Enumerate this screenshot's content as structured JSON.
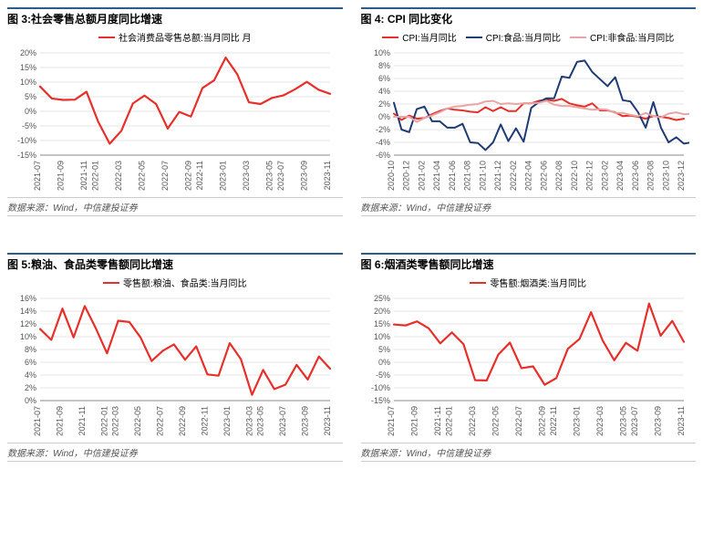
{
  "charts": [
    {
      "id": "c3",
      "title": "图 3:社会零售总额月度同比增速",
      "source": "数据来源：Wind，中信建投证券",
      "legend": [
        {
          "label": "社会消费品零售总额:当月同比 月",
          "color": "#e6302b"
        }
      ],
      "ylim": [
        -15,
        20
      ],
      "ytick_step": 5,
      "y_suffix": "%",
      "x_labels": [
        "2021-07",
        "2021-09",
        "2021-11",
        "2022-01",
        "2022-03",
        "2022-05",
        "2022-07",
        "2022-09",
        "2022-11",
        "2023-01",
        "2023-03",
        "2023-05",
        "2023-07",
        "2023-09",
        "2023-11"
      ],
      "series": [
        {
          "color": "#e6302b",
          "width": 2.2,
          "data": [
            8.5,
            4.4,
            3.9,
            4.0,
            6.7,
            -3.5,
            -11.1,
            -6.7,
            2.7,
            5.4,
            2.5,
            -5.9,
            -0.2,
            -1.8,
            8.0,
            10.6,
            18.4,
            12.7,
            3.1,
            2.5,
            4.6,
            5.5,
            7.6,
            10.1,
            7.4,
            6.0
          ]
        }
      ],
      "line_width": 2.2,
      "grid_color": "#e6e6e6",
      "bg": "#ffffff",
      "title_fontsize": 12,
      "label_fontsize": 9
    },
    {
      "id": "c4",
      "title": "图 4: CPI 同比变化",
      "source": "数据来源：Wind，中信建投证券",
      "legend": [
        {
          "label": "CPI:当月同比",
          "color": "#e6302b"
        },
        {
          "label": "CPI:食品:当月同比",
          "color": "#1f3b73"
        },
        {
          "label": "CPI:非食品:当月同比",
          "color": "#e8a5a5"
        }
      ],
      "ylim": [
        -6,
        10
      ],
      "ytick_step": 2,
      "y_suffix": "%",
      "x_labels": [
        "2020-10",
        "2020-12",
        "2021-02",
        "2021-04",
        "2021-06",
        "2021-08",
        "2021-10",
        "2021-12",
        "2022-02",
        "2022-04",
        "2022-06",
        "2022-08",
        "2022-10",
        "2022-12",
        "2023-02",
        "2023-04",
        "2023-06",
        "2023-08",
        "2023-10",
        "2023-12"
      ],
      "series": [
        {
          "color": "#e6302b",
          "width": 2.0,
          "data": [
            0.5,
            -0.5,
            0.2,
            -0.3,
            -0.2,
            0.4,
            0.9,
            1.3,
            1.1,
            1.0,
            0.8,
            0.7,
            1.5,
            0.9,
            1.5,
            0.9,
            0.9,
            2.1,
            2.1,
            2.5,
            2.7,
            2.5,
            2.8,
            2.1,
            1.8,
            1.6,
            2.1,
            1.0,
            1.0,
            0.7,
            0.1,
            0.2,
            0.0,
            -0.3,
            0.1,
            0.0,
            -0.2,
            -0.5,
            -0.3
          ]
        },
        {
          "color": "#1f3b73",
          "width": 2.0,
          "data": [
            2.2,
            -2.0,
            -2.4,
            1.2,
            1.6,
            -0.7,
            -0.7,
            -1.7,
            -1.7,
            -1.1,
            -4.0,
            -4.1,
            -5.2,
            -4.0,
            -1.2,
            -3.8,
            -1.8,
            -3.9,
            1.4,
            2.3,
            2.9,
            2.9,
            6.3,
            6.1,
            8.6,
            8.8,
            7.0,
            5.9,
            4.8,
            6.2,
            2.6,
            2.4,
            0.7,
            -1.7,
            2.3,
            -1.7,
            -4.0,
            -3.2,
            -4.2,
            -4.0,
            -3.7
          ]
        },
        {
          "color": "#e8a5a5",
          "width": 2.0,
          "data": [
            0.0,
            0.0,
            0.0,
            -0.8,
            -0.2,
            0.2,
            0.7,
            1.3,
            1.6,
            1.7,
            1.9,
            2.0,
            2.4,
            2.5,
            2.0,
            2.1,
            2.0,
            2.1,
            2.1,
            2.2,
            2.5,
            1.9,
            1.7,
            1.7,
            1.5,
            1.3,
            1.1,
            1.2,
            1.1,
            0.6,
            0.6,
            0.3,
            0.1,
            0.6,
            0.1,
            -0.1,
            0.5,
            0.7,
            0.4,
            0.5,
            0.5
          ]
        }
      ],
      "line_width": 2.0,
      "grid_color": "#e6e6e6",
      "bg": "#ffffff",
      "title_fontsize": 12,
      "label_fontsize": 9
    },
    {
      "id": "c5",
      "title": "图 5:粮油、食品类零售额同比增速",
      "source": "数据来源：Wind，中信建投证券",
      "legend": [
        {
          "label": "零售额:粮油、食品类:当月同比",
          "color": "#e6302b"
        }
      ],
      "ylim": [
        0,
        16
      ],
      "ytick_step": 2,
      "y_suffix": "%",
      "x_labels": [
        "2021-07",
        "2021-09",
        "2021-11",
        "2022-01",
        "2022-03",
        "2022-05",
        "2022-07",
        "2022-09",
        "2022-11",
        "2023-01",
        "2023-03",
        "2023-05",
        "2023-07",
        "2023-09",
        "2023-11"
      ],
      "series": [
        {
          "color": "#e6302b",
          "width": 2.2,
          "data": [
            11.2,
            9.5,
            14.4,
            9.9,
            14.8,
            11.3,
            7.4,
            12.5,
            12.3,
            9.9,
            6.2,
            7.8,
            8.8,
            6.4,
            8.5,
            4.1,
            3.9,
            9.0,
            6.5,
            0.9,
            4.8,
            1.8,
            2.5,
            5.6,
            3.3,
            6.9,
            5.0
          ]
        }
      ],
      "line_width": 2.2,
      "grid_color": "#e6e6e6",
      "bg": "#ffffff",
      "title_fontsize": 12,
      "label_fontsize": 9
    },
    {
      "id": "c6",
      "title": "图 6:烟酒类零售额同比增速",
      "source": "数据来源：Wind，中信建投证券",
      "legend": [
        {
          "label": "零售额:烟酒类:当月同比",
          "color": "#e6302b"
        }
      ],
      "ylim": [
        -15,
        25
      ],
      "ytick_step": 5,
      "y_suffix": "%",
      "x_labels": [
        "2021-07",
        "2021-09",
        "2021-11",
        "2022-01",
        "2022-03",
        "2022-05",
        "2022-07",
        "2022-09",
        "2022-11",
        "2023-01",
        "2023-03",
        "2023-05",
        "2023-07",
        "2023-09",
        "2023-11"
      ],
      "series": [
        {
          "color": "#e6302b",
          "width": 2.2,
          "data": [
            14.8,
            14.4,
            16.0,
            13.3,
            7.4,
            11.7,
            7.1,
            -7.0,
            -7.1,
            3.0,
            7.7,
            -2.3,
            -1.6,
            -8.8,
            -6.2,
            5.3,
            9.1,
            19.6,
            8.5,
            0.8,
            7.6,
            4.5,
            23.0,
            10.4,
            16.2,
            8.0
          ]
        }
      ],
      "line_width": 2.2,
      "grid_color": "#e6e6e6",
      "bg": "#ffffff",
      "title_fontsize": 12,
      "label_fontsize": 9
    }
  ]
}
